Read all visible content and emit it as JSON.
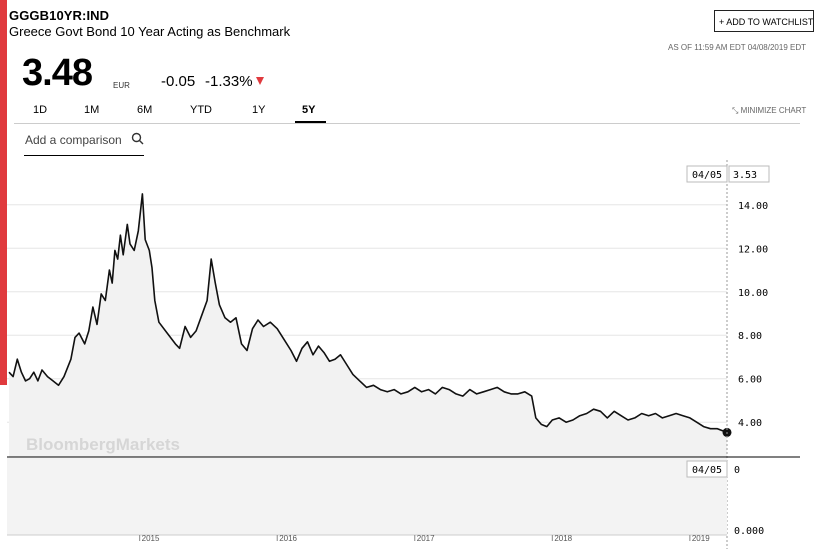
{
  "header": {
    "ticker": "GGGB10YR:IND",
    "name": "Greece Govt Bond 10 Year Acting as Benchmark",
    "watchlist_label": "+ ADD TO WATCHLIST",
    "as_of": "AS OF 11:59 AM EDT 04/08/2019 EDT"
  },
  "quote": {
    "price": "3.48",
    "currency": "EUR",
    "change": "-0.05",
    "change_pct": "-1.33%",
    "direction": "down",
    "down_color": "#e03a3e"
  },
  "ranges": {
    "items": [
      "1D",
      "1M",
      "6M",
      "YTD",
      "1Y",
      "5Y"
    ],
    "selected": "5Y",
    "minimize_label": "MINIMIZE CHART"
  },
  "comparison": {
    "placeholder": "Add a comparison"
  },
  "chart_data": {
    "type": "area",
    "watermark": "BloombergMarkets",
    "y_ticks": [
      "4.00",
      "6.00",
      "8.00",
      "10.00",
      "12.00",
      "14.00"
    ],
    "ylim": [
      2.4,
      15.6
    ],
    "x_ticks": [
      "2015",
      "2016",
      "2017",
      "2018",
      "2019"
    ],
    "x_tick_values": [
      2015.0,
      2016.0,
      2017.0,
      2018.0,
      2019.0
    ],
    "xlim": [
      2014.05,
      2019.27
    ],
    "last_value_label": "3.53",
    "last_date_label": "04/05",
    "volume_date_label": "04/05",
    "volume_top_label": "0",
    "volume_bottom_label": "0.000",
    "series": [
      {
        "values": [
          [
            2014.05,
            6.3
          ],
          [
            2014.08,
            6.1
          ],
          [
            2014.11,
            6.9
          ],
          [
            2014.14,
            6.3
          ],
          [
            2014.17,
            5.9
          ],
          [
            2014.2,
            6.0
          ],
          [
            2014.23,
            6.3
          ],
          [
            2014.26,
            5.9
          ],
          [
            2014.29,
            6.4
          ],
          [
            2014.33,
            6.1
          ],
          [
            2014.37,
            5.9
          ],
          [
            2014.41,
            5.7
          ],
          [
            2014.45,
            6.1
          ],
          [
            2014.5,
            6.9
          ],
          [
            2014.53,
            7.9
          ],
          [
            2014.56,
            8.1
          ],
          [
            2014.6,
            7.6
          ],
          [
            2014.63,
            8.2
          ],
          [
            2014.66,
            9.3
          ],
          [
            2014.69,
            8.5
          ],
          [
            2014.72,
            9.9
          ],
          [
            2014.75,
            9.6
          ],
          [
            2014.78,
            11.0
          ],
          [
            2014.8,
            10.4
          ],
          [
            2014.82,
            11.9
          ],
          [
            2014.84,
            11.5
          ],
          [
            2014.86,
            12.6
          ],
          [
            2014.88,
            11.7
          ],
          [
            2014.91,
            13.1
          ],
          [
            2014.93,
            12.2
          ],
          [
            2014.96,
            11.9
          ],
          [
            2014.99,
            12.8
          ],
          [
            2015.02,
            14.5
          ],
          [
            2015.04,
            12.4
          ],
          [
            2015.07,
            11.9
          ],
          [
            2015.09,
            11.1
          ],
          [
            2015.11,
            9.6
          ],
          [
            2015.14,
            8.6
          ],
          [
            2015.2,
            8.1
          ],
          [
            2015.26,
            7.6
          ],
          [
            2015.29,
            7.4
          ],
          [
            2015.33,
            8.4
          ],
          [
            2015.37,
            7.9
          ],
          [
            2015.41,
            8.2
          ],
          [
            2015.45,
            8.9
          ],
          [
            2015.49,
            9.6
          ],
          [
            2015.52,
            11.5
          ],
          [
            2015.55,
            10.4
          ],
          [
            2015.58,
            9.4
          ],
          [
            2015.62,
            8.8
          ],
          [
            2015.66,
            8.6
          ],
          [
            2015.7,
            8.8
          ],
          [
            2015.74,
            7.6
          ],
          [
            2015.78,
            7.3
          ],
          [
            2015.82,
            8.3
          ],
          [
            2015.86,
            8.7
          ],
          [
            2015.9,
            8.4
          ],
          [
            2015.95,
            8.6
          ],
          [
            2016.0,
            8.3
          ],
          [
            2016.05,
            7.8
          ],
          [
            2016.1,
            7.3
          ],
          [
            2016.14,
            6.8
          ],
          [
            2016.18,
            7.4
          ],
          [
            2016.22,
            7.7
          ],
          [
            2016.26,
            7.1
          ],
          [
            2016.3,
            7.5
          ],
          [
            2016.34,
            7.2
          ],
          [
            2016.38,
            6.8
          ],
          [
            2016.42,
            6.9
          ],
          [
            2016.46,
            7.1
          ],
          [
            2016.5,
            6.7
          ],
          [
            2016.55,
            6.2
          ],
          [
            2016.6,
            5.9
          ],
          [
            2016.65,
            5.6
          ],
          [
            2016.7,
            5.7
          ],
          [
            2016.75,
            5.5
          ],
          [
            2016.8,
            5.4
          ],
          [
            2016.85,
            5.5
          ],
          [
            2016.9,
            5.3
          ],
          [
            2016.95,
            5.4
          ],
          [
            2017.0,
            5.6
          ],
          [
            2017.05,
            5.4
          ],
          [
            2017.1,
            5.5
          ],
          [
            2017.15,
            5.3
          ],
          [
            2017.2,
            5.6
          ],
          [
            2017.25,
            5.5
          ],
          [
            2017.3,
            5.3
          ],
          [
            2017.35,
            5.2
          ],
          [
            2017.4,
            5.5
          ],
          [
            2017.45,
            5.3
          ],
          [
            2017.5,
            5.4
          ],
          [
            2017.55,
            5.5
          ],
          [
            2017.6,
            5.6
          ],
          [
            2017.65,
            5.4
          ],
          [
            2017.7,
            5.3
          ],
          [
            2017.75,
            5.3
          ],
          [
            2017.8,
            5.4
          ],
          [
            2017.85,
            5.2
          ],
          [
            2017.88,
            4.2
          ],
          [
            2017.92,
            3.9
          ],
          [
            2017.96,
            3.8
          ],
          [
            2018.0,
            4.1
          ],
          [
            2018.05,
            4.2
          ],
          [
            2018.1,
            4.0
          ],
          [
            2018.15,
            4.1
          ],
          [
            2018.2,
            4.3
          ],
          [
            2018.25,
            4.4
          ],
          [
            2018.3,
            4.6
          ],
          [
            2018.35,
            4.5
          ],
          [
            2018.4,
            4.2
          ],
          [
            2018.45,
            4.5
          ],
          [
            2018.5,
            4.3
          ],
          [
            2018.55,
            4.1
          ],
          [
            2018.6,
            4.2
          ],
          [
            2018.65,
            4.4
          ],
          [
            2018.7,
            4.3
          ],
          [
            2018.75,
            4.4
          ],
          [
            2018.8,
            4.2
          ],
          [
            2018.85,
            4.3
          ],
          [
            2018.9,
            4.4
          ],
          [
            2018.95,
            4.3
          ],
          [
            2019.0,
            4.2
          ],
          [
            2019.05,
            4.0
          ],
          [
            2019.1,
            3.8
          ],
          [
            2019.15,
            3.7
          ],
          [
            2019.2,
            3.7
          ],
          [
            2019.24,
            3.6
          ],
          [
            2019.27,
            3.53
          ]
        ]
      }
    ]
  }
}
